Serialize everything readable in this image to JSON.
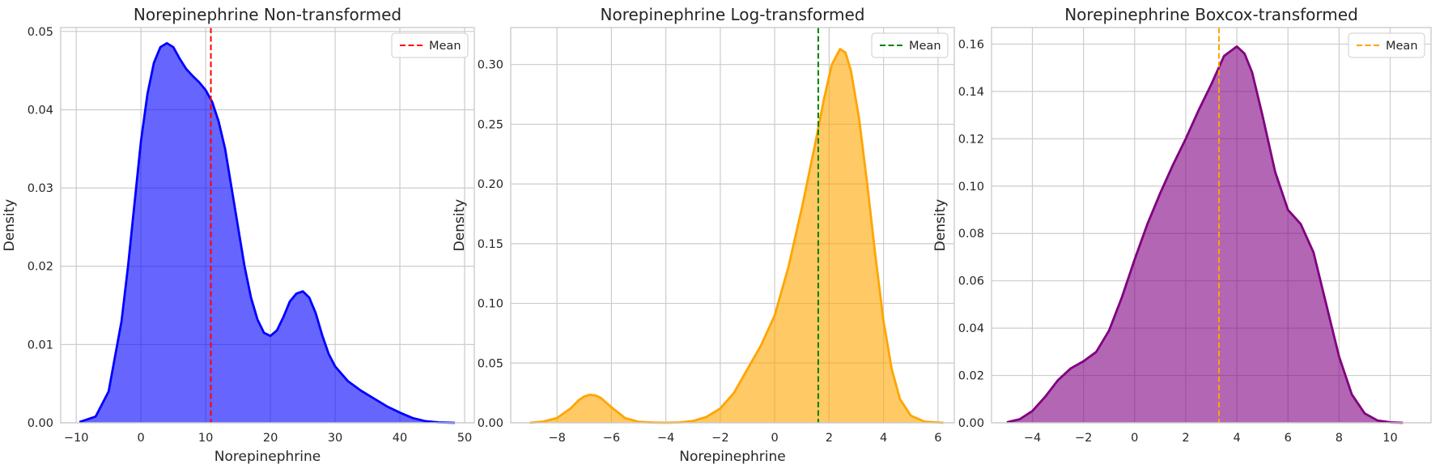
{
  "figure": {
    "background": "#ffffff",
    "grid_color": "#cccccc",
    "spine_color": "#cccccc",
    "text_color": "#262626"
  },
  "chart_data": [
    {
      "type": "area",
      "title": "Norepinephrine Non-transformed",
      "xlabel": "Norepinephrine",
      "ylabel": "Density",
      "xlim": [
        -12.4,
        51.5
      ],
      "ylim": [
        0,
        0.0505
      ],
      "xticks": [
        -10,
        0,
        10,
        20,
        30,
        40,
        50
      ],
      "yticks": [
        0.0,
        0.01,
        0.02,
        0.03,
        0.04,
        0.05
      ],
      "xtick_labels": [
        "−10",
        "0",
        "10",
        "20",
        "30",
        "40",
        "50"
      ],
      "ytick_labels": [
        "0.00",
        "0.01",
        "0.02",
        "0.03",
        "0.04",
        "0.05"
      ],
      "grid": true,
      "line_color": "#0000ff",
      "fill_color": "#0000ff",
      "fill_opacity": 0.6,
      "series": [
        {
          "x": [
            -9.5,
            -7,
            -5,
            -3,
            -2,
            -1,
            0,
            1,
            2,
            3,
            4,
            5,
            6,
            7,
            8,
            9,
            10,
            11,
            12,
            13,
            14,
            15,
            16,
            17,
            18,
            19,
            20,
            21,
            22,
            23,
            24,
            25,
            26,
            27,
            28,
            29,
            30,
            32,
            34,
            36,
            38,
            40,
            42,
            44,
            46,
            48.5
          ],
          "y": [
            0.0001,
            0.0008,
            0.004,
            0.013,
            0.02,
            0.028,
            0.036,
            0.042,
            0.046,
            0.048,
            0.0485,
            0.048,
            0.0465,
            0.0452,
            0.0443,
            0.0435,
            0.0425,
            0.041,
            0.0385,
            0.035,
            0.03,
            0.025,
            0.02,
            0.016,
            0.0132,
            0.0115,
            0.0111,
            0.0118,
            0.0135,
            0.0155,
            0.0165,
            0.0168,
            0.016,
            0.014,
            0.0112,
            0.0088,
            0.0072,
            0.0053,
            0.0041,
            0.0031,
            0.0021,
            0.0013,
            0.0006,
            0.0002,
            5e-05,
            0.0
          ]
        }
      ],
      "mean": {
        "value": 10.8,
        "color": "#ff0000",
        "label": "Mean"
      }
    },
    {
      "type": "area",
      "title": "Norepinephrine Log-transformed",
      "xlabel": "Norepinephrine",
      "ylabel": "Density",
      "xlim": [
        -9.7,
        6.6
      ],
      "ylim": [
        0,
        0.331
      ],
      "xticks": [
        -8,
        -6,
        -4,
        -2,
        0,
        2,
        4,
        6
      ],
      "yticks": [
        0.0,
        0.05,
        0.1,
        0.15,
        0.2,
        0.25,
        0.3
      ],
      "xtick_labels": [
        "−8",
        "−6",
        "−4",
        "−2",
        "0",
        "2",
        "4",
        "6"
      ],
      "ytick_labels": [
        "0.00",
        "0.05",
        "0.10",
        "0.15",
        "0.20",
        "0.25",
        "0.30"
      ],
      "grid": true,
      "line_color": "#ffa500",
      "fill_color": "#ffa500",
      "fill_opacity": 0.6,
      "series": [
        {
          "x": [
            -9,
            -8.5,
            -8,
            -7.5,
            -7.2,
            -7,
            -6.8,
            -6.6,
            -6.4,
            -6,
            -5.5,
            -5,
            -4.5,
            -4,
            -3.5,
            -3,
            -2.5,
            -2,
            -1.5,
            -1,
            -0.5,
            0,
            0.5,
            1,
            1.5,
            1.8,
            2.1,
            2.4,
            2.6,
            2.8,
            3.1,
            3.4,
            3.7,
            4,
            4.3,
            4.6,
            5,
            5.5,
            6.2
          ],
          "y": [
            0.0,
            0.001,
            0.004,
            0.012,
            0.019,
            0.022,
            0.0235,
            0.023,
            0.021,
            0.013,
            0.004,
            0.0008,
            0.0002,
            0.0001,
            0.0003,
            0.0015,
            0.005,
            0.012,
            0.025,
            0.045,
            0.065,
            0.09,
            0.13,
            0.18,
            0.235,
            0.27,
            0.3,
            0.313,
            0.31,
            0.295,
            0.255,
            0.2,
            0.14,
            0.085,
            0.045,
            0.02,
            0.006,
            0.001,
            0.0
          ]
        }
      ],
      "mean": {
        "value": 1.6,
        "color": "#008000",
        "label": "Mean"
      }
    },
    {
      "type": "area",
      "title": "Norepinephrine Boxcox-transformed",
      "xlabel": "",
      "ylabel": "Density",
      "xlim": [
        -5.6,
        11.6
      ],
      "ylim": [
        0,
        0.167
      ],
      "xticks": [
        -4,
        -2,
        0,
        2,
        4,
        6,
        8,
        10
      ],
      "yticks": [
        0.0,
        0.02,
        0.04,
        0.06,
        0.08,
        0.1,
        0.12,
        0.14,
        0.16
      ],
      "xtick_labels": [
        "−4",
        "−2",
        "0",
        "2",
        "4",
        "6",
        "8",
        "10"
      ],
      "ytick_labels": [
        "0.00",
        "0.02",
        "0.04",
        "0.06",
        "0.08",
        "0.10",
        "0.12",
        "0.14",
        "0.16"
      ],
      "grid": true,
      "line_color": "#800080",
      "fill_color": "#800080",
      "fill_opacity": 0.6,
      "series": [
        {
          "x": [
            -5,
            -4.5,
            -4,
            -3.5,
            -3,
            -2.5,
            -2,
            -1.5,
            -1,
            -0.5,
            0,
            0.5,
            1,
            1.5,
            2,
            2.5,
            3,
            3.5,
            4,
            4.3,
            4.6,
            5,
            5.5,
            6,
            6.5,
            7,
            7.5,
            8,
            8.5,
            9,
            9.5,
            10,
            10.5
          ],
          "y": [
            0.0002,
            0.0015,
            0.005,
            0.011,
            0.018,
            0.023,
            0.026,
            0.03,
            0.039,
            0.053,
            0.069,
            0.084,
            0.097,
            0.109,
            0.12,
            0.132,
            0.143,
            0.155,
            0.159,
            0.156,
            0.148,
            0.13,
            0.106,
            0.09,
            0.084,
            0.072,
            0.05,
            0.028,
            0.012,
            0.004,
            0.001,
            0.0002,
            0.0
          ]
        }
      ],
      "mean": {
        "value": 3.3,
        "color": "#ffa500",
        "label": "Mean"
      }
    }
  ]
}
